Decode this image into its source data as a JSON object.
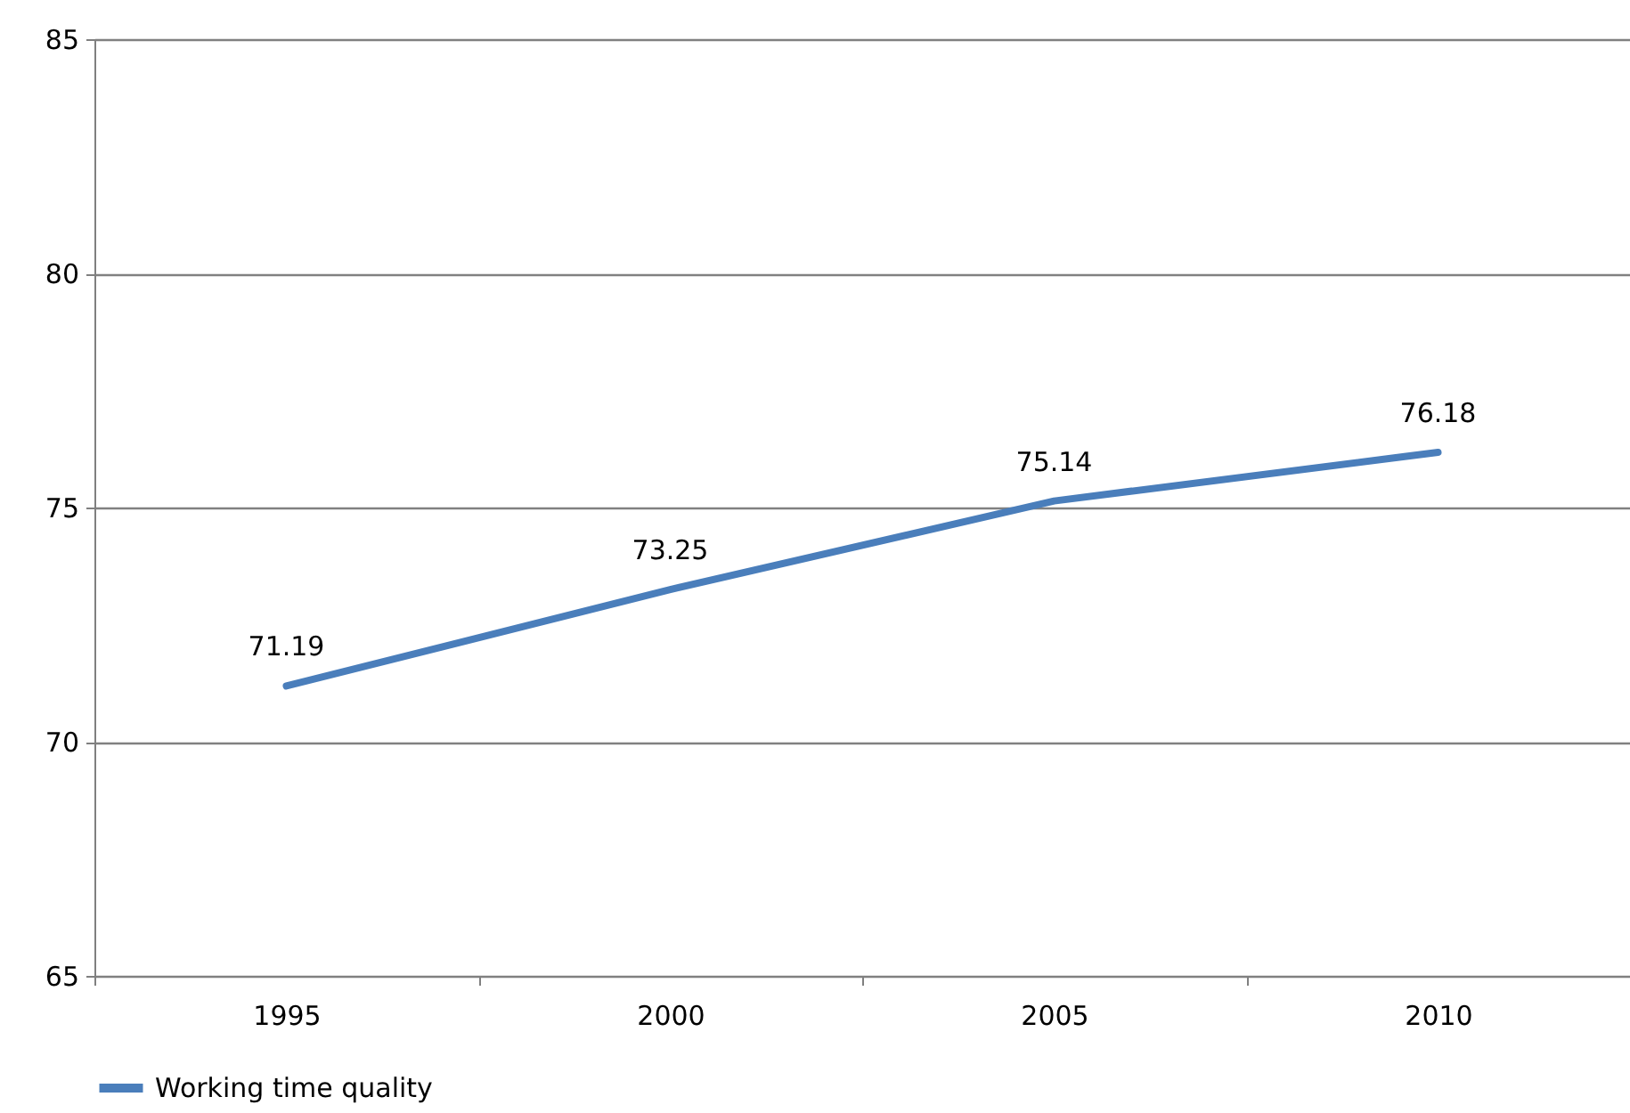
{
  "chart_data": {
    "type": "line",
    "categories": [
      "1995",
      "2000",
      "2005",
      "2010"
    ],
    "series": [
      {
        "name": "Working time quality",
        "color": "#4a7ebb",
        "values": [
          71.19,
          73.25,
          75.14,
          76.18
        ]
      }
    ],
    "ylim": [
      65,
      85
    ],
    "yticks": [
      65,
      70,
      75,
      80,
      85
    ],
    "grid": "y",
    "legend": "bottom",
    "data_labels": true,
    "marker": "none",
    "line_style": "solid"
  }
}
